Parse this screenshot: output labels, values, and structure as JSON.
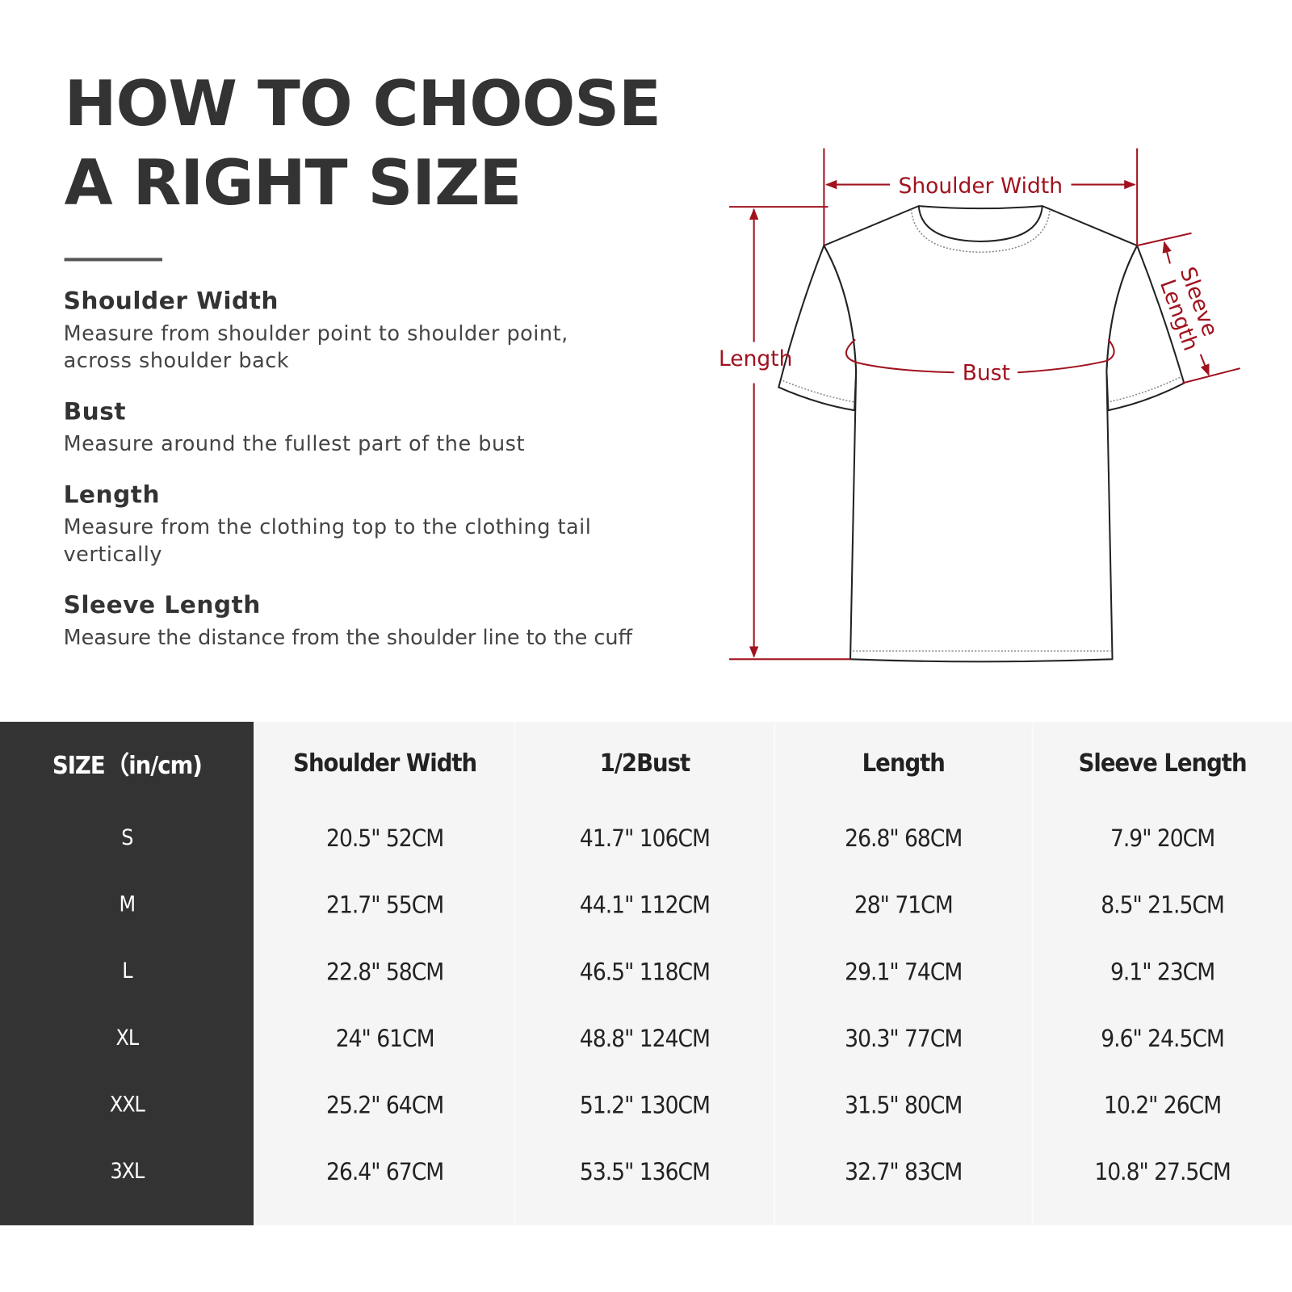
{
  "title": {
    "line1": "HOW TO CHOOSE",
    "line2": "A RIGHT SIZE"
  },
  "definitions": [
    {
      "term": "Shoulder Width",
      "text": "Measure from shoulder point to shoulder point, across shoulder back"
    },
    {
      "term": "Bust",
      "text": "Measure around the fullest part of the bust"
    },
    {
      "term": "Length",
      "text": "Measure from the clothing top to the clothing tail vertically"
    },
    {
      "term": "Sleeve Length",
      "text": "Measure the distance from the shoulder line to the cuff"
    }
  ],
  "diagram": {
    "shoulder_width": "Shoulder Width",
    "length": "Length",
    "bust": "Bust",
    "sleeve": "Sleeve",
    "sleeve_length": "Length",
    "accent_color": "#a0121e"
  },
  "table": {
    "headers": [
      "SIZE（in/cm)",
      "Shoulder Width",
      "1/2Bust",
      "Length",
      "Sleeve Length"
    ],
    "rows": [
      [
        "S",
        "20.5\" 52CM",
        "41.7\" 106CM",
        "26.8\" 68CM",
        "7.9\" 20CM"
      ],
      [
        "M",
        "21.7\" 55CM",
        "44.1\" 112CM",
        "28\" 71CM",
        "8.5\" 21.5CM"
      ],
      [
        "L",
        "22.8\" 58CM",
        "46.5\" 118CM",
        "29.1\" 74CM",
        "9.1\" 23CM"
      ],
      [
        "XL",
        "24\" 61CM",
        "48.8\" 124CM",
        "30.3\" 77CM",
        "9.6\" 24.5CM"
      ],
      [
        "XXL",
        "25.2\" 64CM",
        "51.2\" 130CM",
        "31.5\" 80CM",
        "10.2\" 26CM"
      ],
      [
        "3XL",
        "26.4\" 67CM",
        "53.5\" 136CM",
        "32.7\" 83CM",
        "10.8\" 27.5CM"
      ]
    ]
  }
}
